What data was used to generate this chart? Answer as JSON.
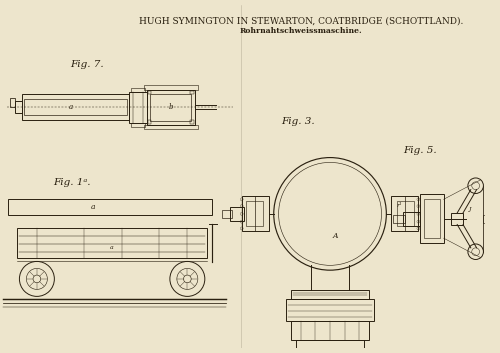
{
  "bg_color": "#ede5cc",
  "line_color": "#2a2010",
  "title_line1": "HUGH SYMINGTON IN STEWARTON, COATBRIDGE (SCHOTTLAND).",
  "title_line2": "Rohrnahtschweissmaschine.",
  "fig7_label": "Fig. 7.",
  "fig1a_label": "Fig. 1ᵃ.",
  "fig3_label": "Fig. 3.",
  "fig5_label": "Fig. 5.",
  "title_fontsize": 6.5,
  "subtitle_fontsize": 5.5,
  "fig_label_fontsize": 7.5,
  "lw": 0.7
}
